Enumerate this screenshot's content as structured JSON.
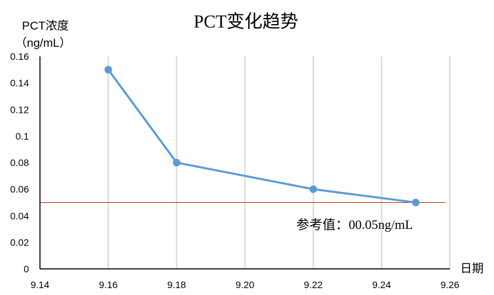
{
  "chart_data": {
    "type": "line",
    "title": "PCT变化趋势",
    "ylabel_line1": "PCT浓度",
    "ylabel_line2": "（ng/mL）",
    "xlabel": "日期",
    "xlim": [
      9.14,
      9.26
    ],
    "ylim": [
      0,
      0.16
    ],
    "x_ticks": [
      "9.14",
      "9.16",
      "9.18",
      "9.20",
      "9.22",
      "9.24",
      "9.26"
    ],
    "y_ticks": [
      "0",
      "0.02",
      "0.04",
      "0.06",
      "0.08",
      "0.1",
      "0.12",
      "0.14",
      "0.16"
    ],
    "grid": "vertical",
    "series": [
      {
        "x": [
          9.16,
          9.18,
          9.22,
          9.25
        ],
        "y": [
          0.15,
          0.08,
          0.06,
          0.05
        ],
        "color": "#5B9BD5"
      }
    ],
    "reference_line": {
      "value": 0.05,
      "label": "参考值：00.05ng/mL",
      "color": "#C0392B"
    }
  }
}
